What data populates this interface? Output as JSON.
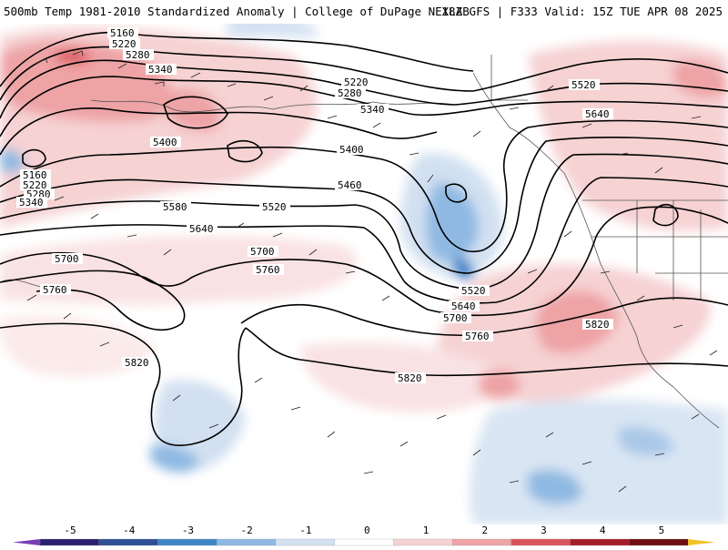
{
  "header": {
    "title_left": "500mb Temp 1981-2010 Standardized Anomaly | College of DuPage NEXLAB",
    "title_right": "18Z GFS | F333 Valid: 15Z TUE APR 08 2025"
  },
  "map": {
    "contour_labels": [
      "5160",
      "5220",
      "5280",
      "5340",
      "5400",
      "5460",
      "5520",
      "5580",
      "5640",
      "5700",
      "5760",
      "5820"
    ],
    "labels": [
      {
        "t": "5160"
      },
      {
        "t": "5220"
      },
      {
        "t": "5280"
      },
      {
        "t": "5340"
      },
      {
        "t": "5400"
      },
      {
        "t": "5160"
      },
      {
        "t": "5220"
      },
      {
        "t": "5280"
      },
      {
        "t": "5340"
      },
      {
        "t": "5580"
      },
      {
        "t": "5640"
      },
      {
        "t": "5700"
      },
      {
        "t": "5760"
      },
      {
        "t": "5700"
      },
      {
        "t": "5760"
      },
      {
        "t": "5520"
      },
      {
        "t": "5460"
      },
      {
        "t": "5400"
      },
      {
        "t": "5220"
      },
      {
        "t": "5280"
      },
      {
        "t": "5340"
      },
      {
        "t": "5520"
      },
      {
        "t": "5640"
      },
      {
        "t": "5520"
      },
      {
        "t": "5640"
      },
      {
        "t": "5700"
      },
      {
        "t": "5760"
      },
      {
        "t": "5820"
      },
      {
        "t": "5820"
      },
      {
        "t": "5820"
      }
    ]
  },
  "colorbar": {
    "ticks": [
      "-5",
      "-4",
      "-3",
      "-2",
      "-1",
      "0",
      "1",
      "2",
      "3",
      "4",
      "5"
    ],
    "colors": [
      "#2a1f6e",
      "#2f4f96",
      "#3f86c8",
      "#8fb9e2",
      "#d2e0f1",
      "#ffffff",
      "#f6d2d3",
      "#eea3a5",
      "#d9535a",
      "#a51d28",
      "#6e0d12"
    ],
    "end_colors": {
      "left": "#7a3cb8",
      "right": "#f2c22b"
    }
  }
}
